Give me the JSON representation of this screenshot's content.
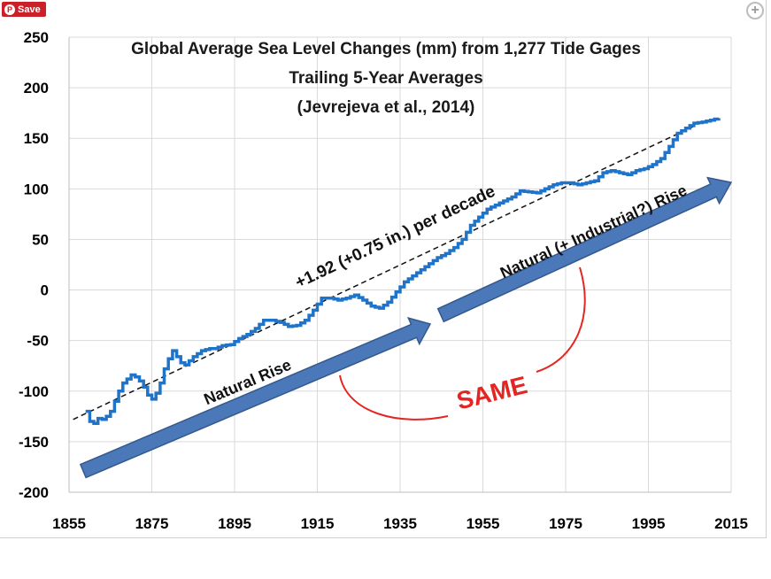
{
  "ui": {
    "save_label": "Save",
    "save_icon": "pinterest-icon",
    "zoom_icon": "zoom-plus-icon"
  },
  "colors": {
    "series": "#1f73c8",
    "arrow_fill": "#4a78b8",
    "arrow_stroke": "#34598c",
    "same": "#e52521",
    "trend": "#111111"
  },
  "chart_data": {
    "type": "line",
    "title_lines": [
      "Global Average Sea Level Changes (mm) from 1,277 Tide Gages",
      "Trailing 5-Year Averages",
      "(Jevrejeva et al., 2014)"
    ],
    "xlabel": "",
    "ylabel": "",
    "xlim": [
      1855,
      2015
    ],
    "ylim": [
      -200,
      250
    ],
    "xticks": [
      1855,
      1875,
      1895,
      1915,
      1935,
      1955,
      1975,
      1995,
      2015
    ],
    "yticks": [
      -200,
      -150,
      -100,
      -50,
      0,
      50,
      100,
      150,
      200,
      250
    ],
    "grid": true,
    "series": [
      {
        "x": [
          1859,
          1860,
          1861,
          1862,
          1863,
          1864,
          1865,
          1866,
          1867,
          1868,
          1869,
          1870,
          1871,
          1872,
          1873,
          1874,
          1875,
          1876,
          1877,
          1878,
          1879,
          1880,
          1881,
          1882,
          1883,
          1884,
          1885,
          1886,
          1887,
          1888,
          1889,
          1890,
          1892,
          1894,
          1896,
          1898,
          1900,
          1902,
          1904,
          1906,
          1908,
          1910,
          1912,
          1914,
          1916,
          1918,
          1920,
          1922,
          1924,
          1926,
          1928,
          1930,
          1932,
          1934,
          1936,
          1938,
          1940,
          1942,
          1944,
          1946,
          1948,
          1950,
          1952,
          1954,
          1956,
          1958,
          1960,
          1962,
          1964,
          1966,
          1968,
          1970,
          1972,
          1974,
          1976,
          1978,
          1980,
          1982,
          1984,
          1986,
          1988,
          1990,
          1992,
          1994,
          1996,
          1998,
          2000,
          2002,
          2004,
          2006,
          2008,
          2010,
          2012
        ],
        "y": [
          -120,
          -130,
          -132,
          -127,
          -128,
          -125,
          -120,
          -110,
          -100,
          -92,
          -88,
          -84,
          -86,
          -90,
          -96,
          -104,
          -108,
          -102,
          -92,
          -78,
          -68,
          -60,
          -66,
          -72,
          -74,
          -70,
          -66,
          -63,
          -60,
          -59,
          -58,
          -58,
          -55,
          -54,
          -48,
          -44,
          -38,
          -30,
          -30,
          -32,
          -36,
          -35,
          -30,
          -20,
          -8,
          -8,
          -10,
          -8,
          -5,
          -10,
          -16,
          -18,
          -12,
          -2,
          8,
          14,
          20,
          26,
          32,
          36,
          42,
          50,
          64,
          72,
          80,
          84,
          88,
          92,
          98,
          97,
          96,
          100,
          104,
          106,
          106,
          104,
          106,
          108,
          116,
          118,
          116,
          114,
          118,
          120,
          124,
          130,
          142,
          155,
          160,
          165,
          166,
          168,
          170
        ]
      }
    ],
    "trend": {
      "from": [
        1856,
        -128
      ],
      "to": [
        2006,
        162
      ]
    },
    "annotations": {
      "trend_label": "+1.92 (+0.75 in.) per decade",
      "arrow_1_label": "Natural Rise",
      "arrow_2_label": "Natural (+ Industrial?) Rise",
      "same_label": "SAME"
    }
  }
}
